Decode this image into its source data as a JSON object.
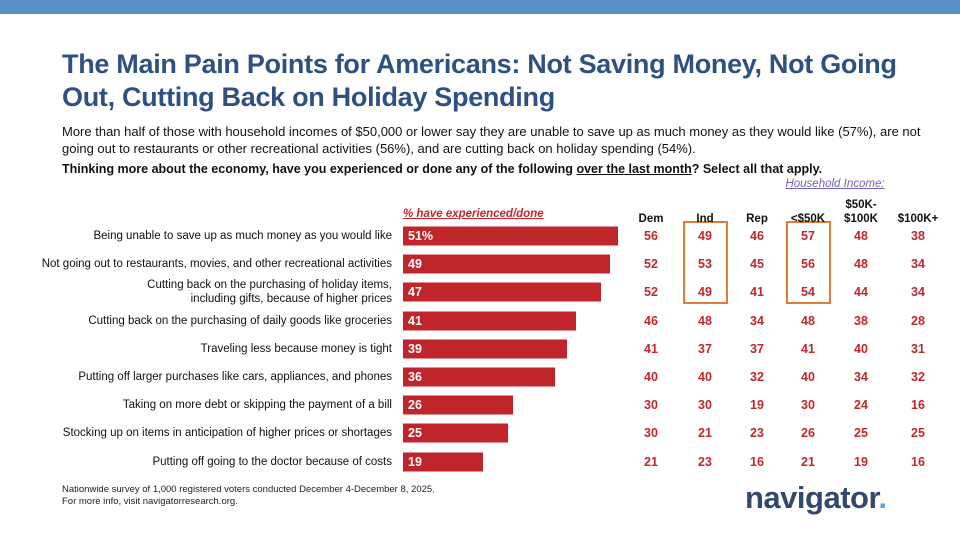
{
  "chart_data": {
    "type": "bar",
    "orientation": "horizontal",
    "title": "The Main Pain Points for Americans: Not Saving Money, Not Going Out, Cutting Back on Holiday Spending",
    "subtitle": "More than half of those with household incomes of $50,000 or lower say they are unable to save up as much money as they would like (57%), are not going out to restaurants or other recreational activities (56%), and are cutting back on holiday spending (54%).",
    "question_start": "Thinking more about the economy, have you experienced or done any of the following",
    "question_underlined": "over the last month",
    "question_end": "? Select all that apply.",
    "value_header": "% have experienced/done",
    "categories": [
      "Being unable to save up as much money as you would like",
      "Not going out to restaurants, movies, and other recreational activities",
      "Cutting back on the purchasing of holiday items,\nincluding gifts, because of higher prices",
      "Cutting back on the purchasing of daily goods like groceries",
      "Traveling less because money is tight",
      "Putting off larger purchases like cars, appliances, and phones",
      "Taking on more debt or skipping the payment of a bill",
      "Stocking up on items in anticipation of higher prices or shortages",
      "Putting off going to the doctor because of costs"
    ],
    "values": [
      51,
      49,
      47,
      41,
      39,
      36,
      26,
      25,
      19
    ],
    "value_labels": [
      "51%",
      "49",
      "47",
      "41",
      "39",
      "36",
      "26",
      "25",
      "19"
    ],
    "color": "#bf252b",
    "table": {
      "group_label": "Household Income:",
      "columns": [
        "Dem",
        "Ind",
        "Rep",
        "<$50K",
        "$50K-\n$100K",
        "$100K+"
      ],
      "rows": [
        [
          56,
          49,
          46,
          57,
          48,
          38
        ],
        [
          52,
          53,
          45,
          56,
          48,
          34
        ],
        [
          52,
          49,
          41,
          54,
          44,
          34
        ],
        [
          46,
          48,
          34,
          48,
          38,
          28
        ],
        [
          41,
          37,
          37,
          41,
          40,
          31
        ],
        [
          40,
          40,
          32,
          40,
          34,
          32
        ],
        [
          30,
          30,
          19,
          30,
          24,
          16
        ],
        [
          30,
          21,
          23,
          26,
          25,
          25
        ],
        [
          21,
          23,
          16,
          21,
          19,
          16
        ]
      ]
    },
    "footnote": [
      "Nationwide survey of 1,000 registered voters conducted December 4-December 8, 2025.",
      "For more info, visit navigatorresearch.org."
    ],
    "logo": "navigator",
    "logo_dot": "."
  }
}
